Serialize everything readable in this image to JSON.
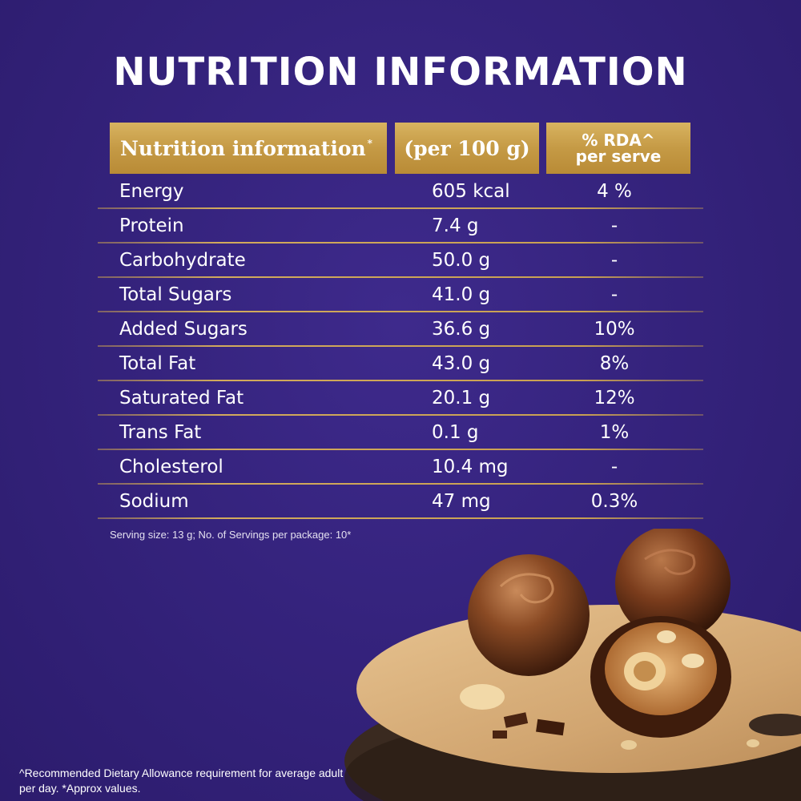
{
  "title": "NUTRITION INFORMATION",
  "table": {
    "headers": {
      "name": "Nutrition information",
      "name_mark": "*",
      "per100": "(per 100 g)",
      "rda_line1": "% RDA^",
      "rda_line2": "per serve"
    },
    "rows": [
      {
        "name": "Energy",
        "per100": "605 kcal",
        "rda": "4 %"
      },
      {
        "name": "Protein",
        "per100": "7.4 g",
        "rda": "-"
      },
      {
        "name": "Carbohydrate",
        "per100": "50.0 g",
        "rda": "-"
      },
      {
        "name": "Total Sugars",
        "per100": "41.0 g",
        "rda": "-"
      },
      {
        "name": "Added Sugars",
        "per100": "36.6 g",
        "rda": "10%"
      },
      {
        "name": "Total Fat",
        "per100": "43.0 g",
        "rda": "8%"
      },
      {
        "name": "Saturated Fat",
        "per100": "20.1 g",
        "rda": "12%"
      },
      {
        "name": "Trans Fat",
        "per100": "0.1 g",
        "rda": "1%"
      },
      {
        "name": "Cholesterol",
        "per100": "10.4 mg",
        "rda": "-"
      },
      {
        "name": "Sodium",
        "per100": "47 mg",
        "rda": "0.3%"
      }
    ]
  },
  "serving_note": "Serving size: 13 g; No. of Servings per package: 10*",
  "footnote": "^Recommended Dietary Allowance requirement for average adult per day. *Approx values.",
  "colors": {
    "background": "#35237d",
    "gold": "#c9a052"
  }
}
